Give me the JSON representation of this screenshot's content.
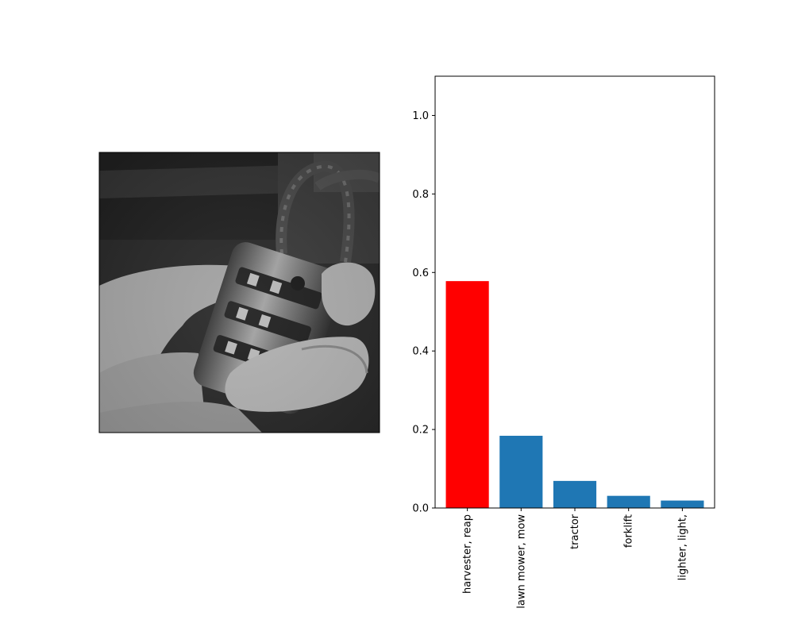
{
  "photo": {
    "description_icon": "combination-padlock-photo"
  },
  "chart_data": {
    "type": "bar",
    "categories": [
      "harvester, reap",
      "lawn mower, mow",
      "tractor",
      "forklift",
      "lighter, light,"
    ],
    "values": [
      0.578,
      0.184,
      0.069,
      0.031,
      0.019
    ],
    "colors": [
      "#ff0000",
      "#1f77b4",
      "#1f77b4",
      "#1f77b4",
      "#1f77b4"
    ],
    "ylim": [
      0,
      1.1
    ],
    "yticks": [
      0.0,
      0.2,
      0.4,
      0.6,
      0.8,
      1.0
    ],
    "ytick_labels": [
      "0.0",
      "0.2",
      "0.4",
      "0.6",
      "0.8",
      "1.0"
    ],
    "title": "",
    "xlabel": "",
    "ylabel": "",
    "grid": false
  }
}
